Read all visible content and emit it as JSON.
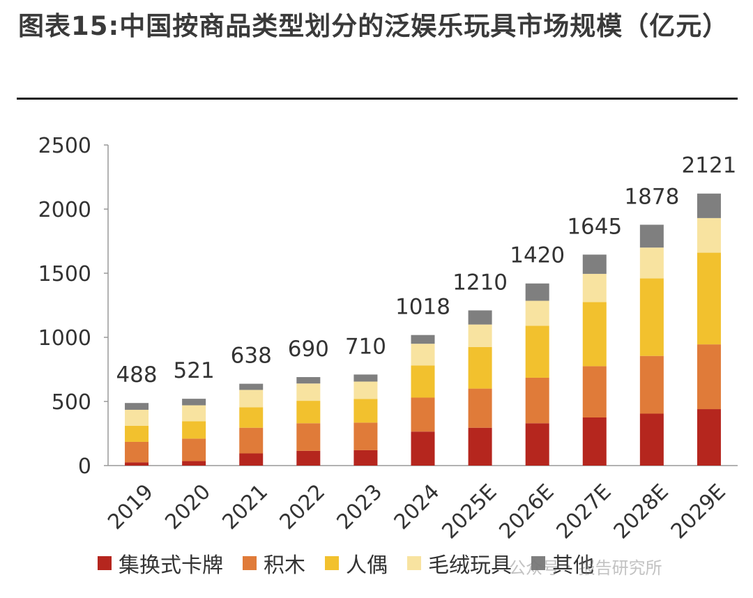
{
  "header": {
    "title": "图表15:中国按商品类型划分的泛娱乐玩具市场规模（亿元）"
  },
  "chart_data": {
    "type": "bar",
    "stacked": true,
    "categories": [
      "2019",
      "2020",
      "2021",
      "2022",
      "2023",
      "2024",
      "2025E",
      "2026E",
      "2027E",
      "2028E",
      "2029E"
    ],
    "series": [
      {
        "name": "集换式卡牌",
        "color": "#b5261e",
        "values": [
          25,
          35,
          95,
          115,
          120,
          265,
          295,
          330,
          375,
          405,
          440
        ]
      },
      {
        "name": "积木",
        "color": "#e07b39",
        "values": [
          160,
          175,
          200,
          215,
          215,
          265,
          305,
          355,
          400,
          450,
          505
        ]
      },
      {
        "name": "人偶",
        "color": "#f2c12e",
        "values": [
          125,
          135,
          160,
          175,
          185,
          250,
          325,
          405,
          500,
          605,
          715
        ]
      },
      {
        "name": "毛绒玩具",
        "color": "#f8e3a0",
        "values": [
          125,
          125,
          135,
          135,
          135,
          170,
          175,
          195,
          220,
          240,
          270
        ]
      },
      {
        "name": "其他",
        "color": "#7f7f7f",
        "values": [
          53,
          51,
          48,
          50,
          55,
          68,
          110,
          135,
          150,
          178,
          191
        ]
      }
    ],
    "totals": [
      "488",
      "521",
      "638",
      "690",
      "710",
      "1018",
      "1210",
      "1420",
      "1645",
      "1878",
      "2121"
    ],
    "yticks": [
      "0",
      "500",
      "1000",
      "1500",
      "2000",
      "2500"
    ],
    "ylim": [
      0,
      2500
    ],
    "legend_position": "bottom",
    "grid": false
  },
  "watermark": {
    "brand": "公众号",
    "separator": "·",
    "name": "报告研究所"
  }
}
